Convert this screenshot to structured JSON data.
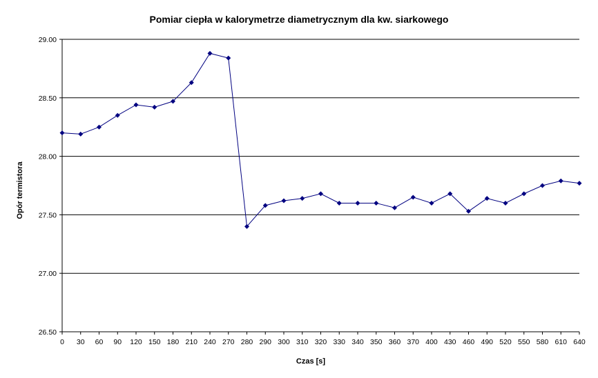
{
  "chart_data": {
    "type": "line",
    "title": "Pomiar ciepła w kalorymetrze diametrycznym dla kw. siarkowego",
    "xlabel": "Czas [s]",
    "ylabel": "Opór termistora",
    "categories": [
      "0",
      "30",
      "60",
      "90",
      "120",
      "150",
      "180",
      "210",
      "240",
      "270",
      "280",
      "290",
      "300",
      "310",
      "320",
      "330",
      "340",
      "350",
      "360",
      "370",
      "400",
      "430",
      "460",
      "490",
      "520",
      "550",
      "580",
      "610",
      "640"
    ],
    "series": [
      {
        "values": [
          28.2,
          28.19,
          28.25,
          28.35,
          28.44,
          28.42,
          28.47,
          28.63,
          28.88,
          28.84,
          27.4,
          27.58,
          27.62,
          27.64,
          27.68,
          27.6,
          27.6,
          27.6,
          27.56,
          27.65,
          27.6,
          27.68,
          27.53,
          27.64,
          27.6,
          27.68,
          27.75,
          27.79,
          27.77
        ],
        "color": "#000080"
      }
    ],
    "ylim": [
      26.5,
      29.0
    ],
    "ytick_labels": [
      "26.50",
      "27.00",
      "27.50",
      "28.00",
      "28.50",
      "29.00"
    ],
    "grid": "horizontal",
    "legend": "none"
  }
}
